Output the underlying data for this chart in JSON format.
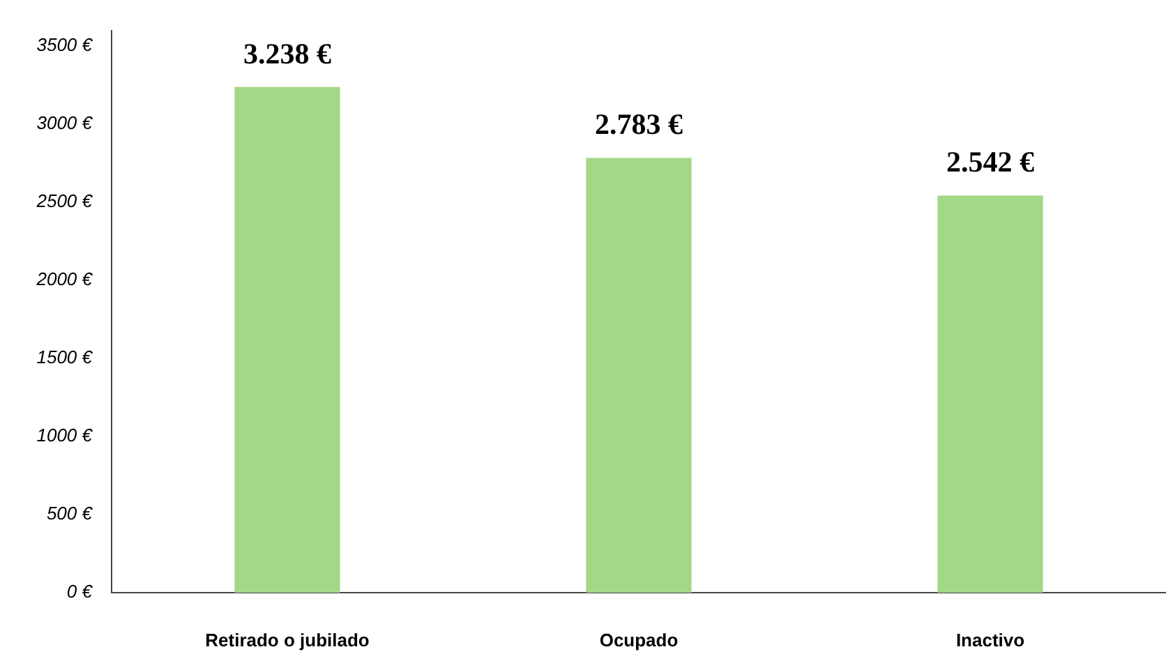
{
  "chart_data": {
    "type": "bar",
    "categories": [
      "Retirado o jubilado",
      "Ocupado",
      "Inactivo"
    ],
    "values": [
      3238,
      2783,
      2542
    ],
    "color": "#a3d886",
    "value_labels": [
      "3.238 €",
      "2.783 €",
      "2.542 €"
    ],
    "ylim": [
      0,
      3600
    ],
    "yticks": [
      {
        "value": 0,
        "label": "0 €"
      },
      {
        "value": 500,
        "label": "500 €"
      },
      {
        "value": 1000,
        "label": "1000 €"
      },
      {
        "value": 1500,
        "label": "1500 €"
      },
      {
        "value": 2000,
        "label": "2000 €"
      },
      {
        "value": 2500,
        "label": "2500 €"
      },
      {
        "value": 3000,
        "label": "3000 €"
      },
      {
        "value": 3500,
        "label": "3500 €"
      }
    ],
    "grid": false,
    "legend": false
  }
}
